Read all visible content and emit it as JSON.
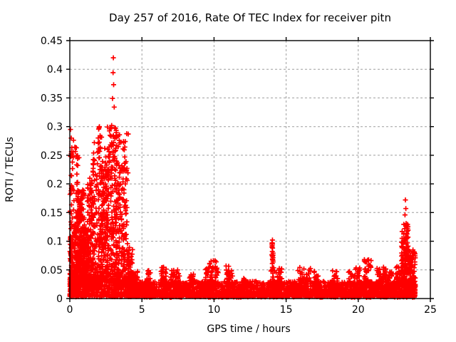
{
  "chart_data": {
    "type": "scatter",
    "title": "Day 257 of 2016, Rate Of TEC Index for receiver pitn",
    "xlabel": "GPS time / hours",
    "ylabel": "ROTI / TECUs",
    "xlim": [
      0,
      25
    ],
    "ylim": [
      0,
      0.45
    ],
    "xticks": [
      0,
      5,
      10,
      15,
      20,
      25
    ],
    "xtick_labels": [
      "0",
      "5",
      "10",
      "15",
      "20",
      "25"
    ],
    "yticks": [
      0,
      0.05,
      0.1,
      0.15,
      0.2,
      0.25,
      0.3,
      0.35,
      0.4,
      0.45
    ],
    "ytick_labels": [
      "0",
      "0.05",
      "0.1",
      "0.15",
      "0.2",
      "0.25",
      "0.3",
      "0.35",
      "0.4",
      "0.45"
    ],
    "grid": true,
    "legend": "none",
    "marker": "plus",
    "marker_color": "#ff0000",
    "grid_color": "#9e9e9e",
    "frame_color": "#000000",
    "background_color": "#ffffff",
    "description": "Dense ROTI scatter: high activity 0-4.5 h (peaks to 0.42 near hour 3), quiet baseline 0.005-0.03 from ~4.5-23 h with small spikes to ~0.05-0.10, end-of-day spike to ~0.17 near hour 23.3; data ends at hour 24.",
    "points_model": {
      "seed": 20160257,
      "segment_format": [
        "t_start_h",
        "t_end_h",
        "count",
        "y_min_TECU",
        "y_max_TECU",
        "skew_toward_min"
      ],
      "segments": [
        [
          0.0,
          0.15,
          70,
          0.004,
          0.11,
          1.8
        ],
        [
          0.0,
          0.12,
          25,
          0.02,
          0.26,
          1.2
        ],
        [
          0.05,
          0.3,
          14,
          0.14,
          0.28,
          1.0
        ],
        [
          0.1,
          0.45,
          90,
          0.01,
          0.13,
          1.7
        ],
        [
          0.35,
          0.65,
          70,
          0.02,
          0.27,
          1.6
        ],
        [
          0.5,
          1.0,
          230,
          0.02,
          0.19,
          1.4
        ],
        [
          0.9,
          1.3,
          130,
          0.01,
          0.13,
          1.6
        ],
        [
          1.2,
          1.55,
          90,
          0.02,
          0.21,
          1.6
        ],
        [
          1.45,
          1.85,
          100,
          0.02,
          0.25,
          1.6
        ],
        [
          1.85,
          2.25,
          120,
          0.02,
          0.3,
          1.8
        ],
        [
          2.2,
          2.65,
          140,
          0.03,
          0.24,
          1.3
        ],
        [
          2.6,
          3.25,
          170,
          0.03,
          0.3,
          1.2
        ],
        [
          3.2,
          4.0,
          200,
          0.02,
          0.24,
          1.6
        ],
        [
          3.3,
          4.1,
          18,
          0.2,
          0.29,
          1.0
        ],
        [
          3.95,
          4.35,
          120,
          0.005,
          0.09,
          2.0
        ],
        [
          4.25,
          4.7,
          140,
          0.004,
          0.05,
          2.0
        ],
        [
          0.0,
          4.6,
          450,
          0.003,
          0.04,
          1.5
        ],
        [
          4.6,
          23.95,
          2000,
          0.004,
          0.03,
          1.5
        ],
        [
          4.6,
          23.95,
          700,
          0.002,
          0.012,
          1.0
        ],
        [
          5.3,
          5.6,
          30,
          0.02,
          0.05,
          1.2
        ],
        [
          6.3,
          6.7,
          40,
          0.02,
          0.055,
          1.3
        ],
        [
          7.0,
          7.6,
          40,
          0.02,
          0.05,
          1.3
        ],
        [
          8.3,
          8.6,
          25,
          0.02,
          0.045,
          1.2
        ],
        [
          9.4,
          10.3,
          70,
          0.02,
          0.068,
          1.5
        ],
        [
          10.8,
          11.3,
          40,
          0.02,
          0.058,
          1.4
        ],
        [
          12.0,
          12.3,
          20,
          0.015,
          0.04,
          1.2
        ],
        [
          14.0,
          14.1,
          22,
          0.03,
          0.1,
          1.1
        ],
        [
          14.1,
          14.7,
          40,
          0.02,
          0.055,
          1.4
        ],
        [
          15.8,
          16.8,
          40,
          0.02,
          0.055,
          1.3
        ],
        [
          16.9,
          17.3,
          30,
          0.02,
          0.05,
          1.3
        ],
        [
          18.2,
          18.6,
          25,
          0.02,
          0.05,
          1.3
        ],
        [
          19.3,
          20.1,
          45,
          0.02,
          0.055,
          1.4
        ],
        [
          20.4,
          20.9,
          45,
          0.02,
          0.068,
          1.4
        ],
        [
          21.3,
          21.7,
          30,
          0.02,
          0.055,
          1.4
        ],
        [
          21.7,
          21.95,
          20,
          0.03,
          0.056,
          1.1
        ],
        [
          22.0,
          22.4,
          30,
          0.02,
          0.05,
          1.3
        ],
        [
          22.6,
          23.0,
          40,
          0.02,
          0.06,
          1.3
        ],
        [
          23.0,
          23.5,
          130,
          0.02,
          0.13,
          1.4
        ],
        [
          23.4,
          23.97,
          140,
          0.01,
          0.085,
          1.7
        ]
      ],
      "outliers": [
        [
          0.05,
          0.295
        ],
        [
          0.1,
          0.28
        ],
        [
          0.14,
          0.252
        ],
        [
          0.07,
          0.248
        ],
        [
          0.18,
          0.238
        ],
        [
          0.12,
          0.214
        ],
        [
          1.7,
          0.272
        ],
        [
          1.65,
          0.254
        ],
        [
          1.72,
          0.241
        ],
        [
          1.62,
          0.227
        ],
        [
          2.05,
          0.3
        ],
        [
          2.1,
          0.284
        ],
        [
          2.0,
          0.261
        ],
        [
          2.42,
          0.262
        ],
        [
          2.5,
          0.247
        ],
        [
          3.02,
          0.42
        ],
        [
          3.0,
          0.394
        ],
        [
          3.04,
          0.373
        ],
        [
          2.96,
          0.349
        ],
        [
          3.08,
          0.334
        ],
        [
          2.9,
          0.302
        ],
        [
          3.12,
          0.298
        ],
        [
          2.86,
          0.283
        ],
        [
          3.18,
          0.262
        ],
        [
          4.05,
          0.287
        ],
        [
          3.72,
          0.274
        ],
        [
          14.05,
          0.102
        ],
        [
          14.05,
          0.095
        ],
        [
          14.06,
          0.088
        ],
        [
          14.04,
          0.082
        ],
        [
          14.05,
          0.075
        ],
        [
          14.06,
          0.068
        ],
        [
          14.04,
          0.061
        ],
        [
          14.05,
          0.054
        ],
        [
          23.27,
          0.172
        ],
        [
          23.3,
          0.157
        ],
        [
          23.24,
          0.146
        ],
        [
          23.32,
          0.131
        ],
        [
          23.22,
          0.122
        ],
        [
          23.35,
          0.114
        ],
        [
          23.28,
          0.107
        ],
        [
          9.95,
          0.066
        ],
        [
          20.65,
          0.067
        ],
        [
          13.95,
          0.048
        ]
      ]
    }
  }
}
